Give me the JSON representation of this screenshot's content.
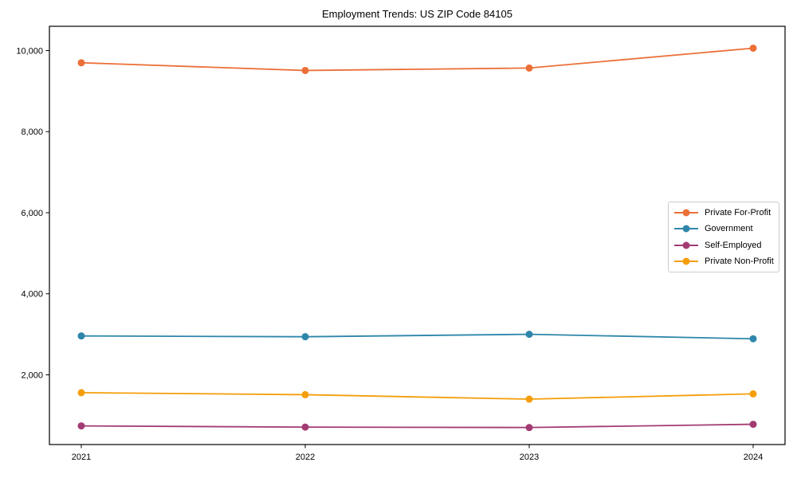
{
  "page": {
    "background": "#ffffff",
    "axis_color": "#000000",
    "legend_border_color": "#cccccc"
  },
  "chart_data": {
    "type": "line",
    "title": "Employment Trends: US ZIP Code 84105",
    "xlabel": "",
    "ylabel": "",
    "x": [
      "2021",
      "2022",
      "2023",
      "2024"
    ],
    "series": [
      {
        "name": "Private For-Profit",
        "color": "#EB7038",
        "values": [
          9700,
          9510,
          9570,
          10060
        ]
      },
      {
        "name": "Government",
        "color": "#2E86AB",
        "values": [
          2960,
          2940,
          3000,
          2890
        ]
      },
      {
        "name": "Self-Employed",
        "color": "#A23B72",
        "values": [
          740,
          710,
          700,
          780
        ]
      },
      {
        "name": "Private Non-Profit",
        "color": "#F49E0B",
        "values": [
          1560,
          1510,
          1400,
          1530
        ]
      }
    ],
    "ylim": [
      280,
      10600
    ],
    "yticks": [
      2000,
      4000,
      6000,
      8000,
      10000
    ],
    "ytick_labels": [
      "2,000",
      "4,000",
      "6,000",
      "8,000",
      "10,000"
    ],
    "grid": false,
    "legend_position": "center-right",
    "marker": "circle"
  }
}
